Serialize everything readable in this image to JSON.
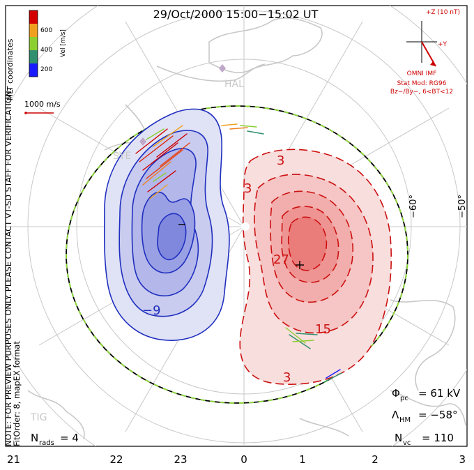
{
  "header": {
    "title": "29/Oct/2000 15:00−15:02 UT"
  },
  "side_text": {
    "coords": "MLT coordinates",
    "note": "NOTE: FOR PREVIEW PURPOSES ONLY. PLEASE CONTACT VT-SD STAFF FOR VERIFICATION.",
    "fit": "FitOrder: 8, mapEX format"
  },
  "colorbar": {
    "label": "Vel [m/s]",
    "ticks": [
      "600",
      "400",
      "200"
    ],
    "colors": [
      "#d40000",
      "#f0a020",
      "#8ccf30",
      "#2f8f6f",
      "#1a1aff"
    ]
  },
  "vector_scale": {
    "label": "1000 m/s"
  },
  "imf": {
    "z_label": "+Z (10 nT)",
    "y_label": "+Y",
    "source": "OMNI IMF",
    "model": "Stat Mod: RG96",
    "condition": "Bz−/By−, 6<BT<12",
    "color": "#cc0000"
  },
  "stations": [
    {
      "name": "HAL"
    },
    {
      "name": "SYE"
    },
    {
      "name": "TIG"
    }
  ],
  "latitudes": [
    "−60°",
    "−50°"
  ],
  "contours": {
    "negative_labels": [
      "−9",
      "−"
    ],
    "positive_labels": [
      "3",
      "3",
      "27",
      "15",
      "3",
      "+"
    ],
    "negative_color": "#1f2fbf",
    "positive_color": "#cc1111"
  },
  "stats": {
    "phi_label": "Φ",
    "phi_sub": "pc",
    "phi_value": "= 61 kV",
    "lambda_label": "Λ",
    "lambda_sub": "HM",
    "lambda_value": "= −58°",
    "nvc_label": "N",
    "nvc_sub": "vc",
    "nvc_value": "= 110",
    "nrads_label": "N",
    "nrads_sub": "rads",
    "nrads_value": "= 4"
  },
  "mlt_axis": {
    "ticks": [
      "21",
      "22",
      "23",
      "0",
      "1",
      "2",
      "3"
    ]
  }
}
